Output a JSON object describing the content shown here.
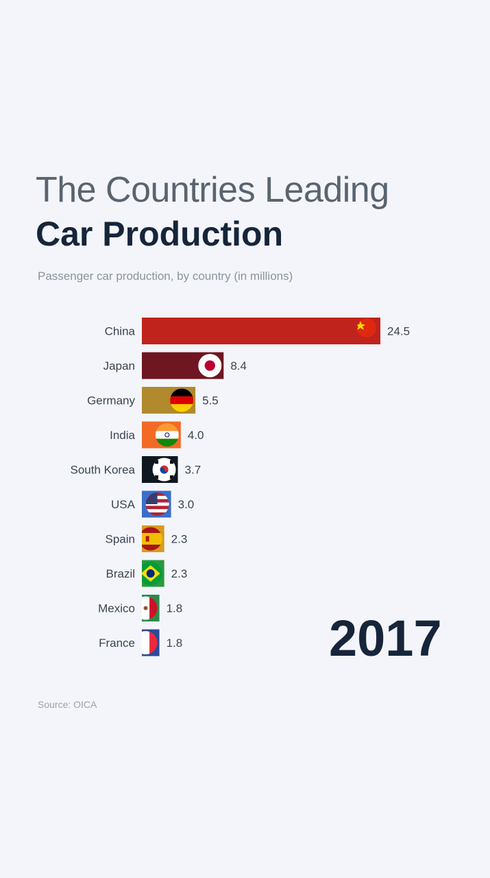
{
  "title_line1": "The Countries Leading",
  "title_line2": "Car Production",
  "subtitle": "Passenger car production, by country (in millions)",
  "year": "2017",
  "source": "Source: OICA",
  "chart_data": {
    "type": "bar",
    "orientation": "horizontal",
    "categories": [
      "China",
      "Japan",
      "Germany",
      "India",
      "South Korea",
      "USA",
      "Spain",
      "Brazil",
      "Mexico",
      "France"
    ],
    "values": [
      24.5,
      8.4,
      5.5,
      4.0,
      3.7,
      3.0,
      2.3,
      2.3,
      1.8,
      1.8
    ],
    "value_labels": [
      "24.5",
      "8.4",
      "5.5",
      "4.0",
      "3.7",
      "3.0",
      "2.3",
      "2.3",
      "1.8",
      "1.8"
    ],
    "bar_colors": [
      "#c0231c",
      "#6e1622",
      "#b08a2c",
      "#f26a25",
      "#0f1820",
      "#3a6fc8",
      "#d89a1e",
      "#2a9a3c",
      "#2a8a4a",
      "#2a4a9a"
    ],
    "flags": [
      "china-flag",
      "japan-flag",
      "germany-flag",
      "india-flag",
      "south-korea-flag",
      "usa-flag",
      "spain-flag",
      "brazil-flag",
      "mexico-flag",
      "france-flag"
    ],
    "xlim": [
      0,
      24.5
    ],
    "grid": false,
    "legend": "none"
  }
}
